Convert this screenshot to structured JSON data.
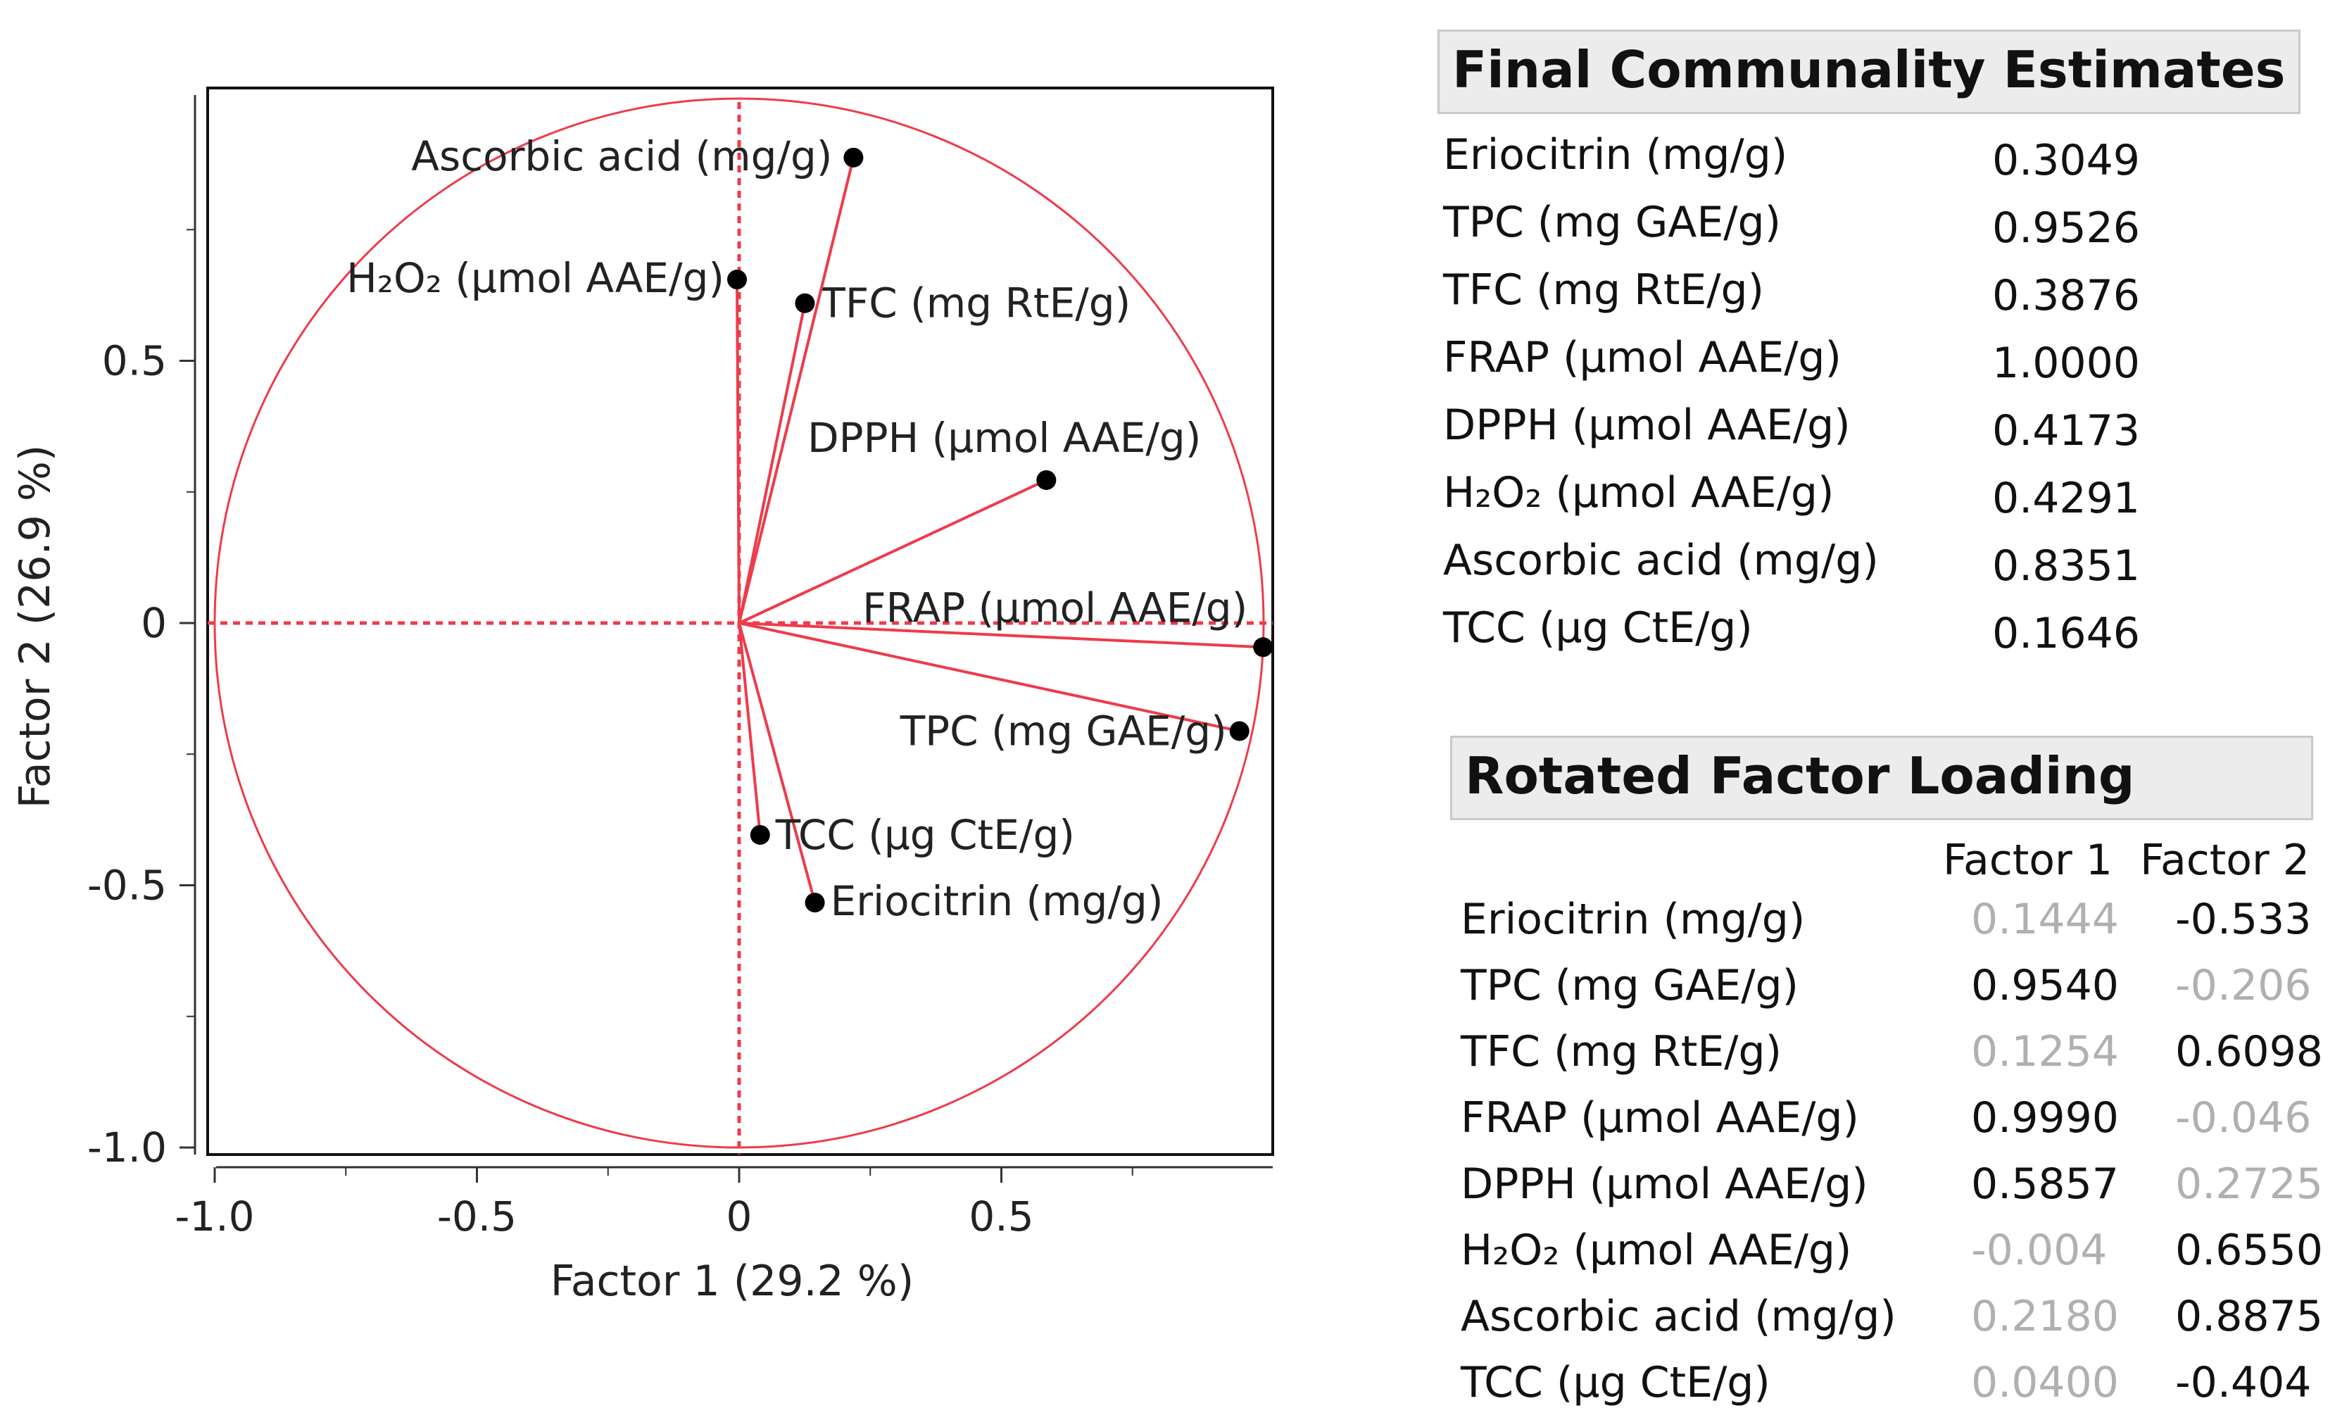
{
  "chart_data": {
    "type": "scatter",
    "subtype": "factor-loading-plot",
    "xlabel": "Factor 1  (29.2 %)",
    "ylabel": "Factor 2  (26.9 %)",
    "xlim": [
      -1.0,
      1.0
    ],
    "ylim": [
      -1.0,
      1.0
    ],
    "xticks": [
      -1.0,
      -0.5,
      0,
      0.5
    ],
    "yticks": [
      0.5,
      0,
      -0.5,
      -1.0
    ],
    "xtick_labels": [
      "-1.0",
      "-0.5",
      "0",
      "0.5"
    ],
    "ytick_labels": [
      "0.5",
      "0",
      "-0.5",
      "-1.0"
    ],
    "unit_circle": true,
    "color": "#ee3b4b",
    "points": [
      {
        "label": "Eriocitrin (mg/g)",
        "x": 0.1444,
        "y": -0.533
      },
      {
        "label": "TPC (mg GAE/g)",
        "x": 0.954,
        "y": -0.206
      },
      {
        "label": "TFC (mg RtE/g)",
        "x": 0.1254,
        "y": 0.6098
      },
      {
        "label": "FRAP (μmol AAE/g)",
        "x": 0.999,
        "y": -0.046
      },
      {
        "label": "DPPH (μmol AAE/g)",
        "x": 0.5857,
        "y": 0.2725
      },
      {
        "label": "H₂O₂ (μmol AAE/g)",
        "x": -0.004,
        "y": 0.655
      },
      {
        "label": "Ascorbic acid (mg/g)",
        "x": 0.218,
        "y": 0.8875
      },
      {
        "label": "TCC (μg CtE/g)",
        "x": 0.04,
        "y": -0.404
      }
    ]
  },
  "communality": {
    "title": "Final Communality Estimates",
    "rows": [
      {
        "label": "Eriocitrin (mg/g)",
        "value": "0.3049"
      },
      {
        "label": "TPC (mg GAE/g)",
        "value": "0.9526"
      },
      {
        "label": "TFC (mg RtE/g)",
        "value": "0.3876"
      },
      {
        "label": "FRAP (μmol AAE/g)",
        "value": "1.0000"
      },
      {
        "label": "DPPH (μmol AAE/g)",
        "value": "0.4173"
      },
      {
        "label": "H₂O₂ (μmol AAE/g)",
        "value": "0.4291"
      },
      {
        "label": "Ascorbic acid (mg/g)",
        "value": "0.8351"
      },
      {
        "label": "TCC (μg CtE/g)",
        "value": "0.1646"
      }
    ]
  },
  "loading": {
    "title": "Rotated Factor Loading",
    "col1": "Factor 1",
    "col2": "Factor 2",
    "rows": [
      {
        "label": "Eriocitrin (mg/g)",
        "f1": "0.1444",
        "f1_emphasis": false,
        "f2": "-0.533",
        "f2_emphasis": true
      },
      {
        "label": "TPC (mg GAE/g)",
        "f1": "0.9540",
        "f1_emphasis": true,
        "f2": "-0.206",
        "f2_emphasis": false
      },
      {
        "label": "TFC (mg RtE/g)",
        "f1": "0.1254",
        "f1_emphasis": false,
        "f2": "0.6098",
        "f2_emphasis": true
      },
      {
        "label": "FRAP (μmol AAE/g)",
        "f1": "0.9990",
        "f1_emphasis": true,
        "f2": "-0.046",
        "f2_emphasis": false
      },
      {
        "label": "DPPH (μmol AAE/g)",
        "f1": "0.5857",
        "f1_emphasis": true,
        "f2": "0.2725",
        "f2_emphasis": false
      },
      {
        "label": "H₂O₂ (μmol AAE/g)",
        "f1": "-0.004",
        "f1_emphasis": false,
        "f2": "0.6550",
        "f2_emphasis": true
      },
      {
        "label": "Ascorbic acid (mg/g)",
        "f1": "0.2180",
        "f1_emphasis": false,
        "f2": "0.8875",
        "f2_emphasis": true
      },
      {
        "label": "TCC (μg CtE/g)",
        "f1": "0.0400",
        "f1_emphasis": false,
        "f2": "-0.404",
        "f2_emphasis": true
      }
    ]
  }
}
